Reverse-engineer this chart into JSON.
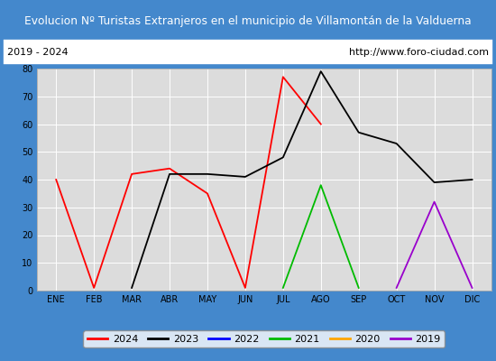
{
  "title": "Evolucion Nº Turistas Extranjeros en el municipio de Villamontán de la Valduerna",
  "subtitle_left": "2019 - 2024",
  "subtitle_right": "http://www.foro-ciudad.com",
  "months": [
    "ENE",
    "FEB",
    "MAR",
    "ABR",
    "MAY",
    "JUN",
    "JUL",
    "AGO",
    "SEP",
    "OCT",
    "NOV",
    "DIC"
  ],
  "series": [
    {
      "year": "2024",
      "color": "#ff0000",
      "data": [
        40,
        1,
        42,
        44,
        35,
        1,
        77,
        60,
        null,
        null,
        null,
        null
      ]
    },
    {
      "year": "2023",
      "color": "#000000",
      "data": [
        null,
        null,
        1,
        42,
        42,
        41,
        48,
        79,
        57,
        53,
        39,
        40
      ]
    },
    {
      "year": "2022",
      "color": "#0000ff",
      "data": [
        null,
        null,
        null,
        null,
        null,
        null,
        null,
        null,
        null,
        null,
        null,
        null
      ]
    },
    {
      "year": "2021",
      "color": "#00bb00",
      "data": [
        null,
        null,
        null,
        null,
        null,
        null,
        1,
        38,
        1,
        null,
        null,
        null
      ]
    },
    {
      "year": "2020",
      "color": "#ffa500",
      "data": [
        null,
        null,
        null,
        null,
        null,
        null,
        null,
        null,
        null,
        null,
        null,
        null
      ]
    },
    {
      "year": "2019",
      "color": "#9900cc",
      "data": [
        null,
        null,
        null,
        null,
        null,
        null,
        null,
        null,
        null,
        1,
        32,
        1
      ]
    }
  ],
  "ylim": [
    0,
    80
  ],
  "yticks": [
    0,
    10,
    20,
    30,
    40,
    50,
    60,
    70,
    80
  ],
  "title_bg": "#5599dd",
  "title_color": "#ffffff",
  "subtitle_bg": "#ffffff",
  "plot_bg": "#dcdcdc",
  "border_color": "#4488cc",
  "grid_color": "#ffffff",
  "legend_border": "#888888"
}
